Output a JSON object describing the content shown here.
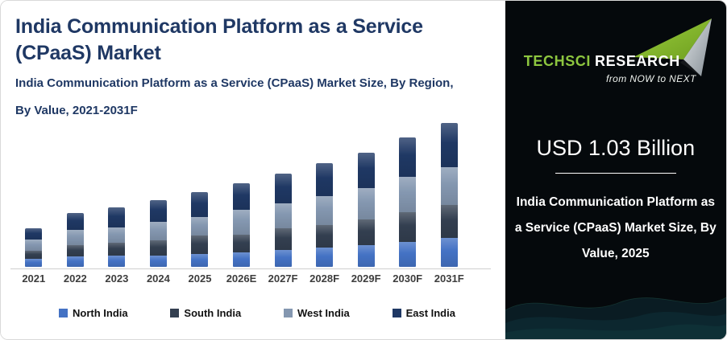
{
  "header": {
    "title_line1": "India Communication Platform as a Service",
    "title_line2": "(CPaaS) Market",
    "subtitle_line1": "India Communication Platform as a Service (CPaaS) Market Size, By Region,",
    "subtitle_line2": "By Value, 2021-2031F"
  },
  "chart_data": {
    "type": "bar",
    "stacked": true,
    "title": "India Communication Platform as a Service (CPaaS) Market Size, By Region, By Value, 2021-2031F",
    "unit": "USD Billion",
    "categories": [
      "2021",
      "2022",
      "2023",
      "2024",
      "2025",
      "2026E",
      "2027F",
      "2028F",
      "2029F",
      "2030F",
      "2031F"
    ],
    "series": [
      {
        "name": "North India",
        "color": "#4472C4",
        "values": [
          0.11,
          0.14,
          0.15,
          0.16,
          0.18,
          0.2,
          0.23,
          0.27,
          0.3,
          0.34,
          0.4
        ]
      },
      {
        "name": "South India",
        "color": "#333F50",
        "values": [
          0.11,
          0.15,
          0.18,
          0.21,
          0.25,
          0.24,
          0.3,
          0.31,
          0.36,
          0.41,
          0.46
        ]
      },
      {
        "name": "West India",
        "color": "#8497B0",
        "values": [
          0.16,
          0.21,
          0.21,
          0.25,
          0.26,
          0.35,
          0.34,
          0.4,
          0.43,
          0.49,
          0.52
        ]
      },
      {
        "name": "East India",
        "color": "#1F3864",
        "values": [
          0.15,
          0.23,
          0.28,
          0.3,
          0.34,
          0.37,
          0.41,
          0.46,
          0.49,
          0.54,
          0.61
        ]
      }
    ],
    "totals_estimated": [
      0.53,
      0.73,
      0.82,
      0.92,
      1.03,
      1.16,
      1.28,
      1.44,
      1.58,
      1.78,
      1.99
    ],
    "legend_position": "bottom",
    "grid": false,
    "y_axis_visible": false
  },
  "side_panel": {
    "brand": {
      "name_part1": "TechSci",
      "name_part2": "Research",
      "tagline": "from NOW to NEXT",
      "green": "#8DC63F"
    },
    "headline": "USD 1.03 Billion",
    "caption_lines": [
      "India Communication Platform as",
      "a Service (CPaaS) Market Size, By",
      "Value, 2025"
    ]
  },
  "colors": {
    "title_navy": "#1F3864",
    "axis_label": "#3D3D3D",
    "axis_line": "#CFCFCF",
    "panel_bg": "#05090C"
  }
}
